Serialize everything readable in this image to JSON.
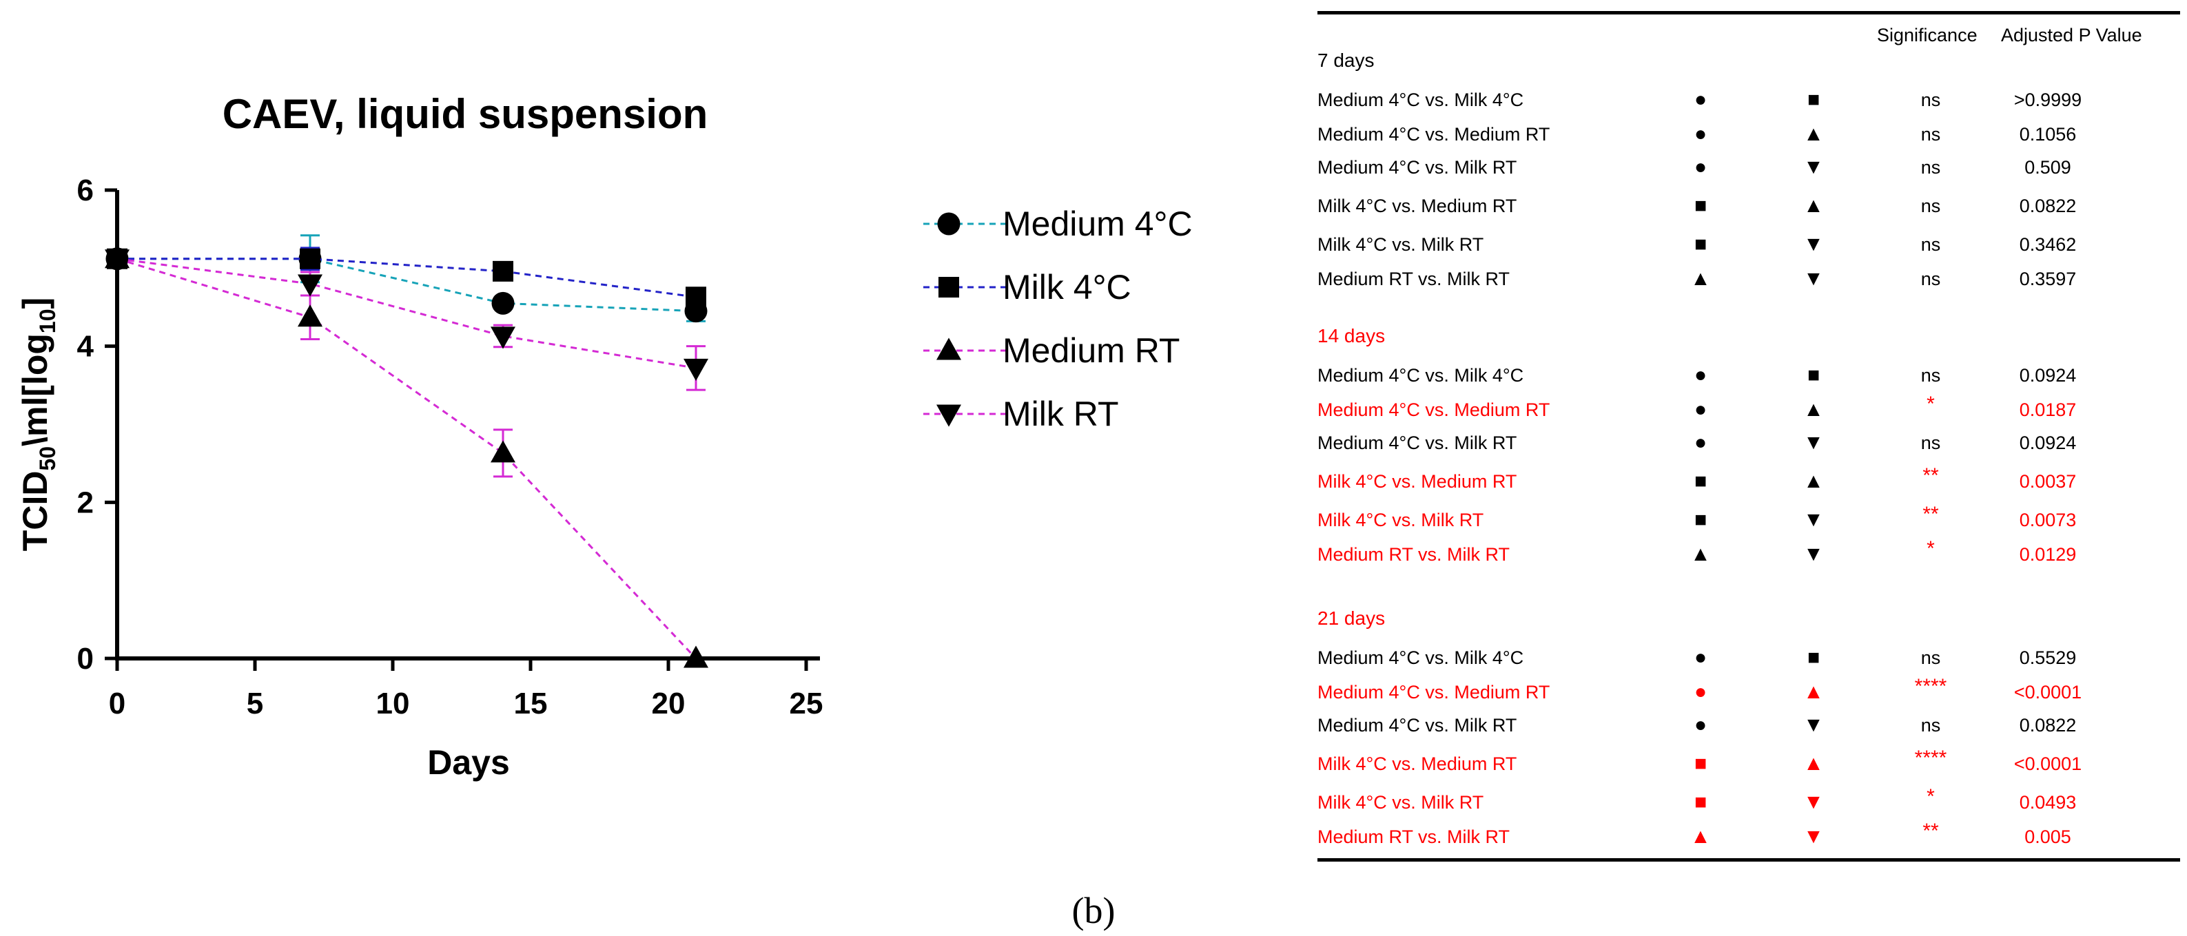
{
  "panel_label": "(b)",
  "chart_data": {
    "type": "line",
    "title": "CAEV, liquid suspension",
    "xlabel": "Days",
    "ylabel_main": "TCID",
    "ylabel_sub": "50",
    "ylabel_mid": "\\ml[log",
    "ylabel_sub2": "10",
    "ylabel_end": "]",
    "xlim": [
      0,
      25
    ],
    "ylim": [
      0,
      6
    ],
    "x_ticks": [
      "0",
      "5",
      "10",
      "15",
      "20",
      "25"
    ],
    "y_ticks": [
      "0",
      "2",
      "4",
      "6"
    ],
    "legend_position": "right",
    "series": [
      {
        "name": "Medium 4°C",
        "color": "#17a3b8",
        "marker": "circle",
        "x": [
          0,
          7,
          14,
          21
        ],
        "y": [
          5.12,
          5.12,
          4.55,
          4.45
        ],
        "err": [
          0.0,
          0.3,
          0.05,
          0.13
        ]
      },
      {
        "name": "Milk 4°C",
        "color": "#2323c8",
        "marker": "square",
        "x": [
          0,
          7,
          14,
          21
        ],
        "y": [
          5.12,
          5.12,
          4.96,
          4.63
        ],
        "err": [
          0.0,
          0.14,
          0.1,
          0.08
        ]
      },
      {
        "name": "Medium RT",
        "color": "#d42ad4",
        "marker": "triangle-up",
        "x": [
          0,
          7,
          14,
          21
        ],
        "y": [
          5.12,
          4.37,
          2.63,
          0.0
        ],
        "err": [
          0.0,
          0.28,
          0.3,
          0.0
        ]
      },
      {
        "name": "Milk RT",
        "color": "#d42ad4",
        "marker": "triangle-down",
        "x": [
          0,
          7,
          14,
          21
        ],
        "y": [
          5.12,
          4.8,
          4.13,
          3.72
        ],
        "err": [
          0.0,
          0.15,
          0.14,
          0.28
        ]
      }
    ]
  },
  "table": {
    "header": {
      "significance": "Significance",
      "p_value": "Adjusted P Value"
    },
    "groups": [
      {
        "heading": "7 days",
        "color": "#000000",
        "rows": [
          {
            "label": "Medium 4°C vs. Milk 4°C",
            "s1": "●",
            "s2": "■",
            "sig": "ns",
            "p": ">0.9999",
            "color": "#000000",
            "sym_color": "#000000"
          },
          {
            "label": "Medium 4°C vs. Medium RT",
            "s1": "●",
            "s2": "▲",
            "sig": "ns",
            "p": "0.1056",
            "color": "#000000",
            "sym_color": "#000000"
          },
          {
            "label": "Medium 4°C vs. Milk RT",
            "s1": "●",
            "s2": "▼",
            "sig": "ns",
            "p": "0.509",
            "color": "#000000",
            "sym_color": "#000000"
          },
          {
            "label": "Milk 4°C vs. Medium RT",
            "s1": "■",
            "s2": "▲",
            "sig": "ns",
            "p": "0.0822",
            "color": "#000000",
            "sym_color": "#000000"
          },
          {
            "label": "Milk 4°C vs. Milk RT",
            "s1": "■",
            "s2": "▼",
            "sig": "ns",
            "p": "0.3462",
            "color": "#000000",
            "sym_color": "#000000"
          },
          {
            "label": "Medium RT vs. Milk RT",
            "s1": "▲",
            "s2": "▼",
            "sig": "ns",
            "p": "0.3597",
            "color": "#000000",
            "sym_color": "#000000"
          }
        ]
      },
      {
        "heading": "14 days",
        "color": "#ff0000",
        "rows": [
          {
            "label": "Medium 4°C vs. Milk 4°C",
            "s1": "●",
            "s2": "■",
            "sig": "ns",
            "p": "0.0924",
            "color": "#000000",
            "sym_color": "#000000"
          },
          {
            "label": "Medium 4°C vs. Medium RT",
            "s1": "●",
            "s2": "▲",
            "sig": "*",
            "p": "0.0187",
            "color": "#ff0000",
            "sym_color": "#000000"
          },
          {
            "label": "Medium 4°C vs. Milk RT",
            "s1": "●",
            "s2": "▼",
            "sig": "ns",
            "p": "0.0924",
            "color": "#000000",
            "sym_color": "#000000"
          },
          {
            "label": "Milk 4°C vs. Medium RT",
            "s1": "■",
            "s2": "▲",
            "sig": "**",
            "p": "0.0037",
            "color": "#ff0000",
            "sym_color": "#000000"
          },
          {
            "label": "Milk 4°C vs. Milk RT",
            "s1": "■",
            "s2": "▼",
            "sig": "**",
            "p": "0.0073",
            "color": "#ff0000",
            "sym_color": "#000000"
          },
          {
            "label": "Medium RT vs. Milk RT",
            "s1": "▲",
            "s2": "▼",
            "sig": "*",
            "p": "0.0129",
            "color": "#ff0000",
            "sym_color": "#000000"
          }
        ]
      },
      {
        "heading": "21 days",
        "color": "#ff0000",
        "rows": [
          {
            "label": "Medium 4°C vs. Milk 4°C",
            "s1": "●",
            "s2": "■",
            "sig": "ns",
            "p": "0.5529",
            "color": "#000000",
            "sym_color": "#000000"
          },
          {
            "label": "Medium 4°C vs. Medium RT",
            "s1": "●",
            "s2": "▲",
            "sig": "****",
            "p": "<0.0001",
            "color": "#ff0000",
            "sym_color": "#ff0000"
          },
          {
            "label": "Medium 4°C vs. Milk RT",
            "s1": "●",
            "s2": "▼",
            "sig": "ns",
            "p": "0.0822",
            "color": "#000000",
            "sym_color": "#000000"
          },
          {
            "label": "Milk 4°C vs. Medium RT",
            "s1": "■",
            "s2": "▲",
            "sig": "****",
            "p": "<0.0001",
            "color": "#ff0000",
            "sym_color": "#ff0000"
          },
          {
            "label": "Milk 4°C vs. Milk RT",
            "s1": "■",
            "s2": "▼",
            "sig": "*",
            "p": "0.0493",
            "color": "#ff0000",
            "sym_color": "#ff0000"
          },
          {
            "label": "Medium RT vs. Milk RT",
            "s1": "▲",
            "s2": "▼",
            "sig": "**",
            "p": "0.005",
            "color": "#ff0000",
            "sym_color": "#ff0000"
          }
        ]
      }
    ]
  }
}
